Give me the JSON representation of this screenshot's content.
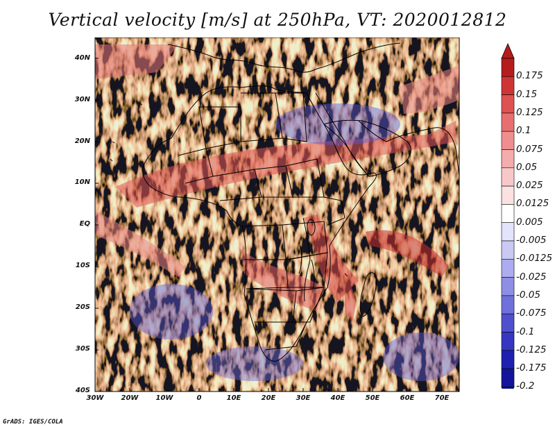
{
  "title": "Vertical velocity [m/s] at 250hPa, VT: 2020012812",
  "credit": "GrADS: IGES/COLA",
  "map": {
    "lat_labels": [
      "40N",
      "30N",
      "20N",
      "10N",
      "EQ",
      "10S",
      "20S",
      "30S",
      "40S"
    ],
    "lon_labels": [
      "30W",
      "20W",
      "10W",
      "0",
      "10E",
      "20E",
      "30E",
      "40E",
      "50E",
      "60E",
      "70E"
    ],
    "lat_values": [
      40,
      30,
      20,
      10,
      0,
      -10,
      -20,
      -30,
      -40
    ],
    "lon_values": [
      -30,
      -20,
      -10,
      0,
      10,
      20,
      30,
      40,
      50,
      60,
      70
    ],
    "extent": {
      "lon_min": -30,
      "lon_max": 75,
      "lat_min": -40,
      "lat_max": 45
    }
  },
  "colorbar": {
    "labels": [
      "0.175",
      "0.15",
      "0.125",
      "0.1",
      "0.075",
      "0.05",
      "0.025",
      "0.0125",
      "0.005",
      "-0.005",
      "-0.0125",
      "-0.025",
      "-0.05",
      "-0.075",
      "-0.1",
      "-0.125",
      "-0.175",
      "-0.2"
    ],
    "colors": [
      "#b51c1c",
      "#cf3434",
      "#de5252",
      "#e86f6f",
      "#ef8e8e",
      "#f4acac",
      "#f8c8c8",
      "#fbe1e1",
      "#ffffff",
      "#e3e3fb",
      "#c9c9f4",
      "#acacee",
      "#8e8ee6",
      "#7070dc",
      "#5050cf",
      "#3636c1",
      "#2020b0",
      "#14149a"
    ]
  },
  "colors": {
    "positive": "#e06060",
    "negative": "#6a6ae6",
    "coast": "#000000"
  }
}
